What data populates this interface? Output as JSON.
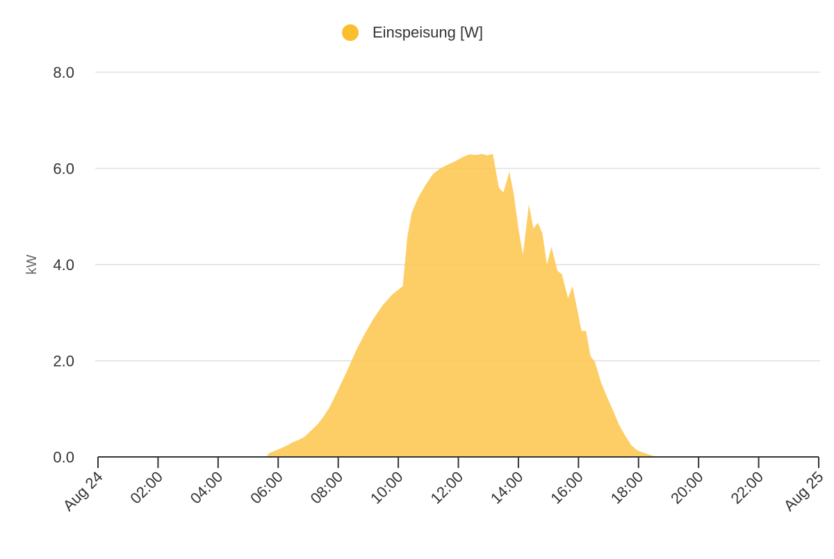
{
  "chart_data": {
    "type": "area",
    "legend": {
      "entries": [
        "Einspeisung [W]"
      ],
      "placement": "top-center"
    },
    "xlabel": "",
    "ylabel": "kW",
    "ylim": [
      0,
      8
    ],
    "y_ticks": [
      "0.0",
      "2.0",
      "4.0",
      "6.0",
      "8.0"
    ],
    "y_tick_values": [
      0,
      2,
      4,
      6,
      8
    ],
    "x_range_hours": [
      0,
      24
    ],
    "x_ticks": [
      "Aug 24",
      "02:00",
      "04:00",
      "06:00",
      "08:00",
      "10:00",
      "12:00",
      "14:00",
      "16:00",
      "18:00",
      "20:00",
      "22:00",
      "Aug 25"
    ],
    "x_tick_hours": [
      0,
      2,
      4,
      6,
      8,
      10,
      12,
      14,
      16,
      18,
      20,
      22,
      24
    ],
    "grid": true,
    "colors": {
      "series": "#fdc64a",
      "legend": "#fbbf2d",
      "grid": "#e0e0e0",
      "axis": "#333333"
    },
    "series": [
      {
        "name": "Einspeisung [W]",
        "points": [
          [
            0,
            0
          ],
          [
            5.6,
            0
          ],
          [
            5.7,
            0.08
          ],
          [
            5.9,
            0.13
          ],
          [
            6.1,
            0.18
          ],
          [
            6.3,
            0.24
          ],
          [
            6.5,
            0.31
          ],
          [
            6.7,
            0.36
          ],
          [
            6.9,
            0.43
          ],
          [
            7.1,
            0.55
          ],
          [
            7.3,
            0.67
          ],
          [
            7.5,
            0.83
          ],
          [
            7.7,
            1.02
          ],
          [
            8.0,
            1.4
          ],
          [
            8.3,
            1.8
          ],
          [
            8.6,
            2.22
          ],
          [
            8.9,
            2.58
          ],
          [
            9.2,
            2.9
          ],
          [
            9.5,
            3.17
          ],
          [
            9.8,
            3.38
          ],
          [
            10.15,
            3.55
          ],
          [
            10.3,
            4.58
          ],
          [
            10.45,
            5.08
          ],
          [
            10.65,
            5.38
          ],
          [
            10.9,
            5.65
          ],
          [
            11.15,
            5.88
          ],
          [
            11.4,
            6.0
          ],
          [
            11.65,
            6.08
          ],
          [
            11.9,
            6.15
          ],
          [
            12.1,
            6.22
          ],
          [
            12.35,
            6.29
          ],
          [
            12.6,
            6.28
          ],
          [
            12.8,
            6.3
          ],
          [
            12.95,
            6.27
          ],
          [
            13.15,
            6.3
          ],
          [
            13.35,
            5.6
          ],
          [
            13.5,
            5.5
          ],
          [
            13.7,
            5.93
          ],
          [
            13.85,
            5.45
          ],
          [
            14.0,
            4.75
          ],
          [
            14.15,
            4.2
          ],
          [
            14.35,
            5.25
          ],
          [
            14.5,
            4.75
          ],
          [
            14.65,
            4.87
          ],
          [
            14.8,
            4.65
          ],
          [
            14.95,
            4.0
          ],
          [
            15.1,
            4.37
          ],
          [
            15.3,
            3.87
          ],
          [
            15.45,
            3.8
          ],
          [
            15.65,
            3.3
          ],
          [
            15.8,
            3.55
          ],
          [
            15.95,
            3.1
          ],
          [
            16.1,
            2.62
          ],
          [
            16.25,
            2.62
          ],
          [
            16.4,
            2.1
          ],
          [
            16.55,
            1.97
          ],
          [
            16.75,
            1.55
          ],
          [
            16.95,
            1.25
          ],
          [
            17.15,
            0.97
          ],
          [
            17.35,
            0.67
          ],
          [
            17.55,
            0.45
          ],
          [
            17.75,
            0.25
          ],
          [
            17.95,
            0.14
          ],
          [
            18.15,
            0.09
          ],
          [
            18.35,
            0.05
          ],
          [
            18.6,
            0
          ],
          [
            24,
            0
          ]
        ]
      }
    ]
  }
}
